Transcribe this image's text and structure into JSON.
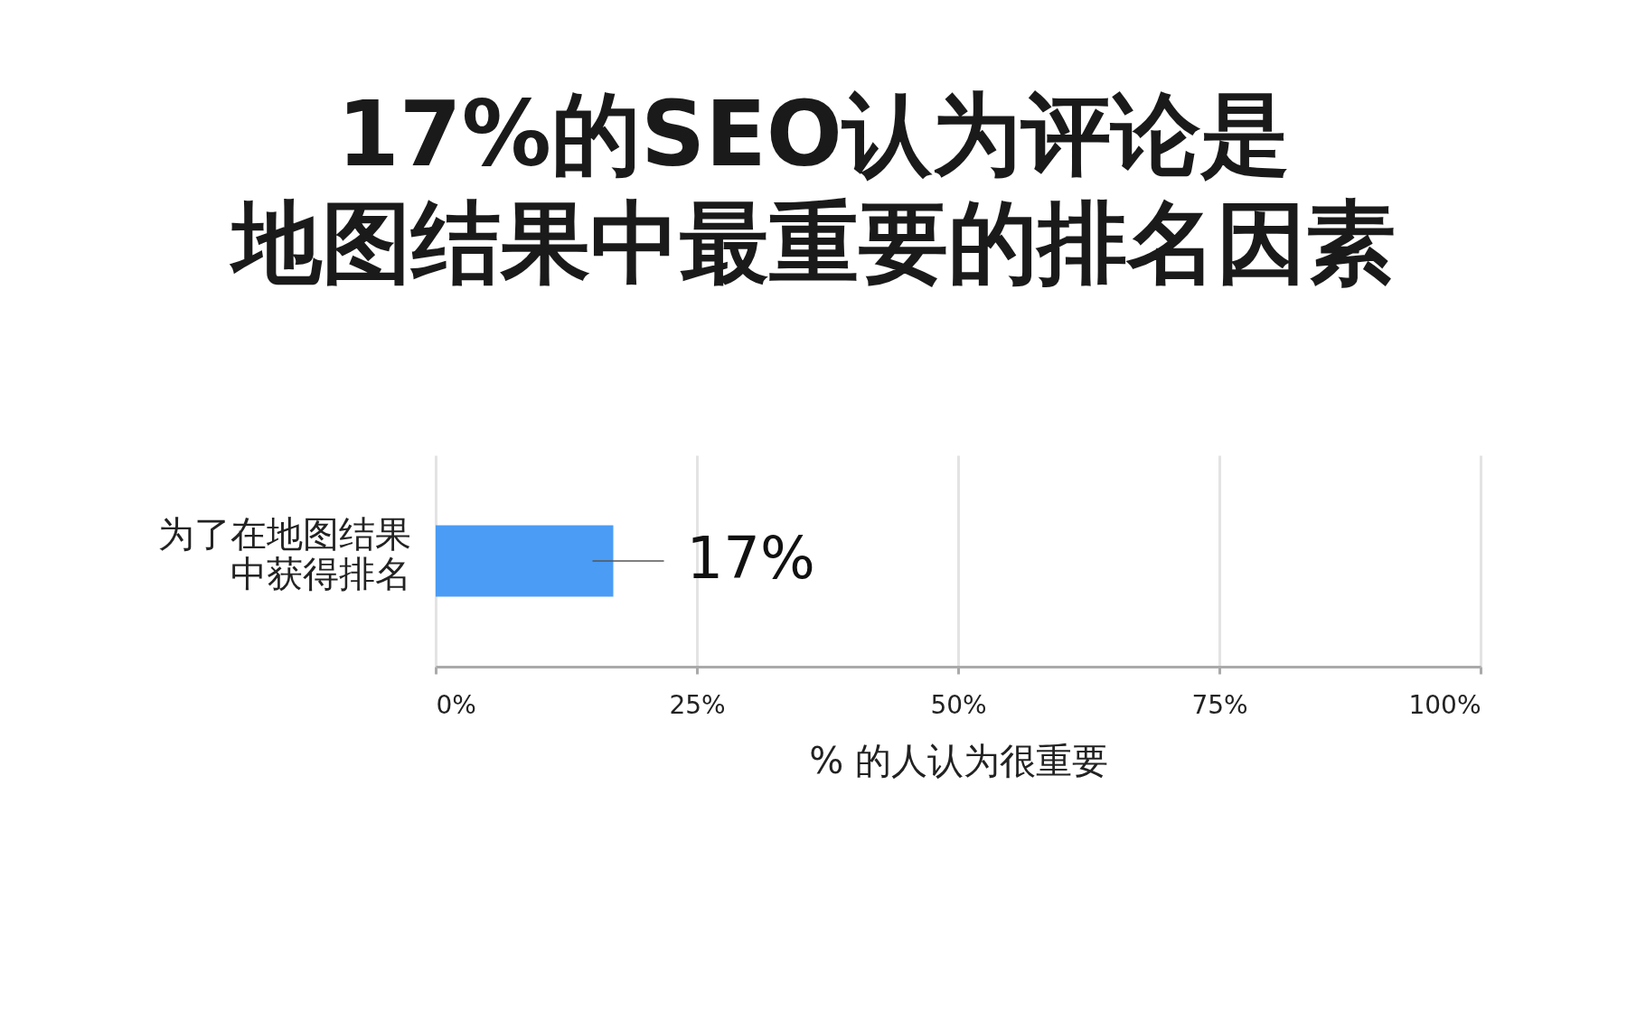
{
  "chart_data": {
    "type": "bar",
    "orientation": "horizontal",
    "title": "17%的SEO认为评论是地图结果中最重要的排名因素",
    "xlabel": "% 的人认为很重要",
    "categories": [
      "为了在地图结果中获得排名"
    ],
    "values": [
      17
    ],
    "value_labels": [
      "17%"
    ],
    "color": "#4a9cf5",
    "xlim": [
      0,
      100
    ],
    "xticks": [
      {
        "value": 0,
        "label": "0%"
      },
      {
        "value": 25,
        "label": "25%"
      },
      {
        "value": 50,
        "label": "50%"
      },
      {
        "value": 75,
        "label": "75%"
      },
      {
        "value": 100,
        "label": "100%"
      }
    ],
    "grid": "x"
  }
}
